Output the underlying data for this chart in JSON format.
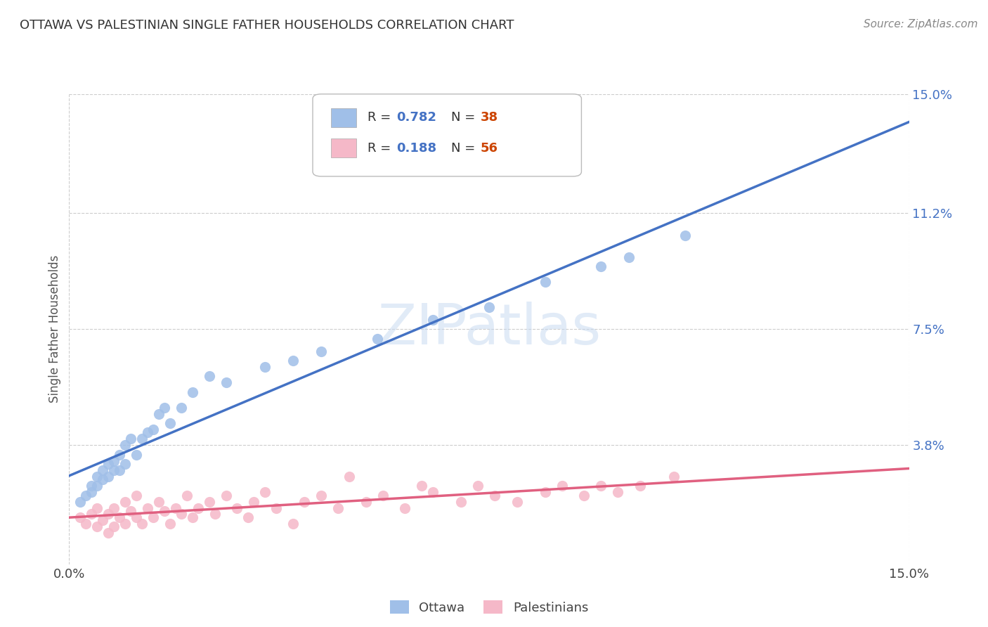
{
  "title": "OTTAWA VS PALESTINIAN SINGLE FATHER HOUSEHOLDS CORRELATION CHART",
  "source": "Source: ZipAtlas.com",
  "ylabel": "Single Father Households",
  "xlim": [
    0.0,
    0.15
  ],
  "ylim": [
    0.0,
    0.15
  ],
  "ytick_labels": [
    "3.8%",
    "7.5%",
    "11.2%",
    "15.0%"
  ],
  "ytick_values": [
    0.038,
    0.075,
    0.112,
    0.15
  ],
  "grid_color": "#cccccc",
  "background_color": "#ffffff",
  "ottawa_color": "#a0bfe8",
  "palestinian_color": "#f5b8c8",
  "ottawa_line_color": "#4472c4",
  "palestinian_line_color": "#e06080",
  "legend_ottawa_R": "0.782",
  "legend_ottawa_N": "38",
  "legend_palestinian_R": "0.188",
  "legend_palestinian_N": "56",
  "watermark": "ZIPatlas",
  "ottawa_x": [
    0.002,
    0.003,
    0.004,
    0.004,
    0.005,
    0.005,
    0.006,
    0.006,
    0.007,
    0.007,
    0.008,
    0.008,
    0.009,
    0.009,
    0.01,
    0.01,
    0.011,
    0.012,
    0.013,
    0.014,
    0.015,
    0.016,
    0.017,
    0.018,
    0.02,
    0.022,
    0.025,
    0.028,
    0.035,
    0.04,
    0.045,
    0.055,
    0.065,
    0.075,
    0.085,
    0.095,
    0.1,
    0.11
  ],
  "ottawa_y": [
    0.02,
    0.022,
    0.023,
    0.025,
    0.025,
    0.028,
    0.027,
    0.03,
    0.028,
    0.032,
    0.03,
    0.033,
    0.03,
    0.035,
    0.032,
    0.038,
    0.04,
    0.035,
    0.04,
    0.042,
    0.043,
    0.048,
    0.05,
    0.045,
    0.05,
    0.055,
    0.06,
    0.058,
    0.063,
    0.065,
    0.068,
    0.072,
    0.078,
    0.082,
    0.09,
    0.095,
    0.098,
    0.105
  ],
  "palestinian_x": [
    0.002,
    0.003,
    0.004,
    0.005,
    0.005,
    0.006,
    0.007,
    0.007,
    0.008,
    0.008,
    0.009,
    0.01,
    0.01,
    0.011,
    0.012,
    0.012,
    0.013,
    0.014,
    0.015,
    0.016,
    0.017,
    0.018,
    0.019,
    0.02,
    0.021,
    0.022,
    0.023,
    0.025,
    0.026,
    0.028,
    0.03,
    0.032,
    0.033,
    0.035,
    0.037,
    0.04,
    0.042,
    0.045,
    0.048,
    0.05,
    0.053,
    0.056,
    0.06,
    0.063,
    0.065,
    0.07,
    0.073,
    0.076,
    0.08,
    0.085,
    0.088,
    0.092,
    0.095,
    0.098,
    0.102,
    0.108
  ],
  "palestinian_y": [
    0.015,
    0.013,
    0.016,
    0.018,
    0.012,
    0.014,
    0.01,
    0.016,
    0.012,
    0.018,
    0.015,
    0.013,
    0.02,
    0.017,
    0.015,
    0.022,
    0.013,
    0.018,
    0.015,
    0.02,
    0.017,
    0.013,
    0.018,
    0.016,
    0.022,
    0.015,
    0.018,
    0.02,
    0.016,
    0.022,
    0.018,
    0.015,
    0.02,
    0.023,
    0.018,
    0.013,
    0.02,
    0.022,
    0.018,
    0.028,
    0.02,
    0.022,
    0.018,
    0.025,
    0.023,
    0.02,
    0.025,
    0.022,
    0.02,
    0.023,
    0.025,
    0.022,
    0.025,
    0.023,
    0.025,
    0.028
  ]
}
